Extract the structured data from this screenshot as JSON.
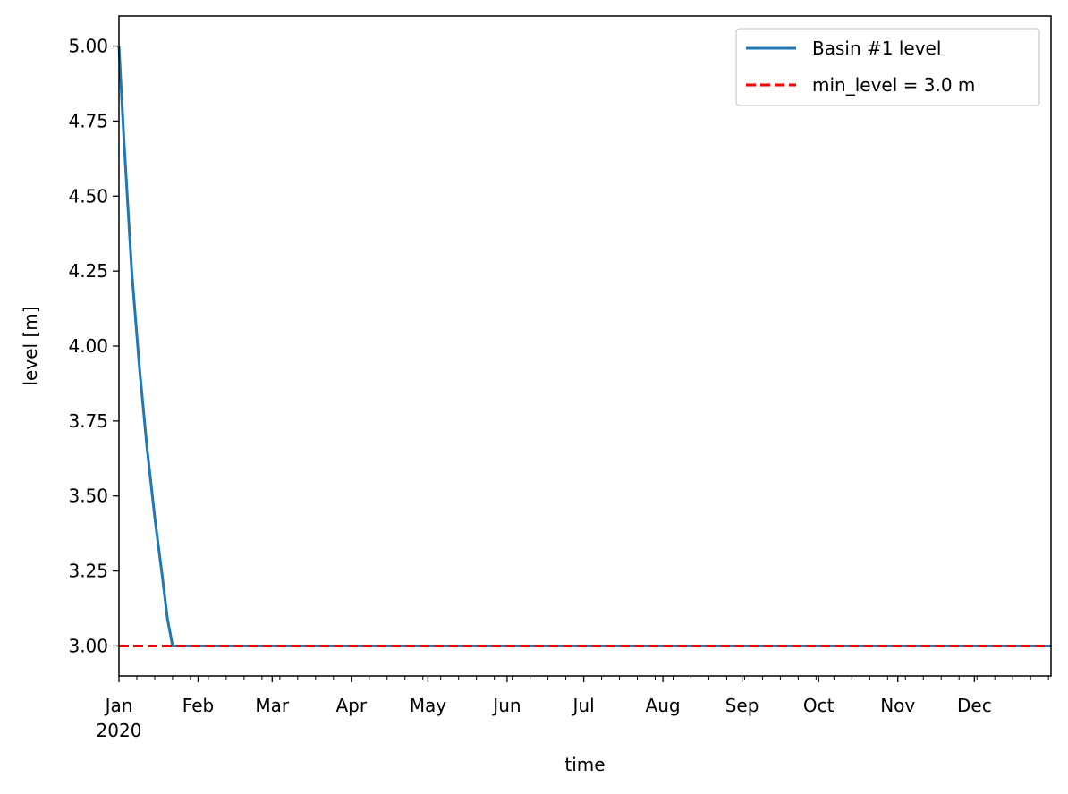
{
  "chart_data": {
    "type": "line",
    "xlabel": "time",
    "ylabel": "level [m]",
    "x_range": [
      "2020-01-01",
      "2020-12-31"
    ],
    "ylim": [
      2.9,
      5.1
    ],
    "y_ticks": [
      "3.00",
      "3.25",
      "3.50",
      "3.75",
      "4.00",
      "4.25",
      "4.50",
      "4.75",
      "5.00"
    ],
    "x_ticks": [
      {
        "date": "2020-01-01",
        "label": "Jan",
        "sublabel": "2020"
      },
      {
        "date": "2020-02-01",
        "label": "Feb"
      },
      {
        "date": "2020-03-01",
        "label": "Mar"
      },
      {
        "date": "2020-04-01",
        "label": "Apr"
      },
      {
        "date": "2020-05-01",
        "label": "May"
      },
      {
        "date": "2020-06-01",
        "label": "Jun"
      },
      {
        "date": "2020-07-01",
        "label": "Jul"
      },
      {
        "date": "2020-08-01",
        "label": "Aug"
      },
      {
        "date": "2020-09-01",
        "label": "Sep"
      },
      {
        "date": "2020-10-01",
        "label": "Oct"
      },
      {
        "date": "2020-11-01",
        "label": "Nov"
      },
      {
        "date": "2020-12-01",
        "label": "Dec"
      }
    ],
    "grid": false,
    "legend": {
      "placement": "top-right"
    },
    "series": [
      {
        "name": "Basin #1 level",
        "color": "#1f77b4",
        "style": "solid",
        "points": [
          {
            "x": "2020-01-01",
            "y": 5.0
          },
          {
            "x": "2020-01-03",
            "y": 4.68
          },
          {
            "x": "2020-01-06",
            "y": 4.25
          },
          {
            "x": "2020-01-09",
            "y": 3.93
          },
          {
            "x": "2020-01-12",
            "y": 3.66
          },
          {
            "x": "2020-01-15",
            "y": 3.43
          },
          {
            "x": "2020-01-18",
            "y": 3.23
          },
          {
            "x": "2020-01-20",
            "y": 3.09
          },
          {
            "x": "2020-01-22",
            "y": 3.0
          },
          {
            "x": "2020-12-31",
            "y": 3.0
          }
        ]
      },
      {
        "name": "min_level = 3.0 m",
        "color": "#ff0000",
        "style": "dashed",
        "points": [
          {
            "x": "2020-01-01",
            "y": 3.0
          },
          {
            "x": "2020-12-31",
            "y": 3.0
          }
        ]
      }
    ]
  }
}
